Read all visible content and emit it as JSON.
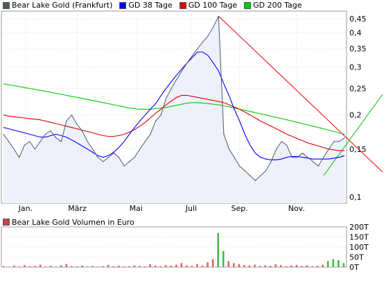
{
  "legend": {
    "items": [
      {
        "label": "Bear Lake Gold (Frankfurt)",
        "color": "#4a5a6a"
      },
      {
        "label": "GD 38 Tage",
        "color": "#0000ff"
      },
      {
        "label": "GD 100 Tage",
        "color": "#dd0000"
      },
      {
        "label": "GD 200 Tage",
        "color": "#00cc00"
      }
    ]
  },
  "volume_legend": {
    "label": "Bear Lake Gold Volumen in Euro",
    "color": "#cc4444"
  },
  "colors": {
    "price": "#4a5a6a",
    "area": "#eef0fa",
    "gd38": "#0000ff",
    "gd100": "#dd0000",
    "gd200": "#00cc00",
    "trend_red": "#ee0000",
    "trend_green": "#00bb00",
    "grid": "#cccccc"
  },
  "chart_data": [
    {
      "type": "line",
      "scale": "log",
      "x_ticks": [
        "Jan.",
        "März",
        "Mai",
        "Juli",
        "Sep.",
        "Nov."
      ],
      "y_ticks": [
        "0,45",
        "0,4",
        "0,35",
        "0,3",
        "0,25",
        "0,2",
        "0,15",
        "0,1"
      ],
      "ylim": [
        0.095,
        0.48
      ],
      "series": [
        {
          "name": "Bear Lake Gold (Frankfurt)",
          "values": [
            0.17,
            0.16,
            0.15,
            0.14,
            0.155,
            0.16,
            0.15,
            0.16,
            0.17,
            0.175,
            0.165,
            0.16,
            0.19,
            0.2,
            0.185,
            0.175,
            0.16,
            0.15,
            0.14,
            0.135,
            0.14,
            0.145,
            0.14,
            0.13,
            0.135,
            0.14,
            0.15,
            0.16,
            0.17,
            0.19,
            0.2,
            0.23,
            0.25,
            0.27,
            0.29,
            0.31,
            0.33,
            0.35,
            0.37,
            0.39,
            0.42,
            0.46,
            0.17,
            0.15,
            0.14,
            0.13,
            0.125,
            0.12,
            0.115,
            0.12,
            0.125,
            0.135,
            0.15,
            0.16,
            0.155,
            0.14,
            0.14,
            0.145,
            0.14,
            0.135,
            0.13,
            0.14,
            0.15,
            0.16,
            0.16,
            0.165
          ]
        },
        {
          "name": "GD 38 Tage",
          "values": [
            0.18,
            0.178,
            0.176,
            0.174,
            0.172,
            0.17,
            0.168,
            0.166,
            0.166,
            0.168,
            0.17,
            0.168,
            0.166,
            0.162,
            0.158,
            0.154,
            0.15,
            0.146,
            0.142,
            0.14,
            0.142,
            0.146,
            0.152,
            0.16,
            0.17,
            0.18,
            0.19,
            0.2,
            0.21,
            0.22,
            0.235,
            0.25,
            0.265,
            0.28,
            0.295,
            0.31,
            0.325,
            0.34,
            0.34,
            0.33,
            0.31,
            0.29,
            0.26,
            0.235,
            0.21,
            0.19,
            0.17,
            0.155,
            0.145,
            0.14,
            0.138,
            0.137,
            0.137,
            0.138,
            0.14,
            0.141,
            0.141,
            0.14,
            0.139,
            0.138,
            0.138,
            0.138,
            0.138,
            0.139,
            0.14,
            0.142
          ]
        },
        {
          "name": "GD 100 Tage",
          "values": [
            0.2,
            0.198,
            0.197,
            0.196,
            0.195,
            0.194,
            0.193,
            0.192,
            0.19,
            0.188,
            0.186,
            0.184,
            0.182,
            0.18,
            0.178,
            0.176,
            0.174,
            0.172,
            0.17,
            0.168,
            0.167,
            0.167,
            0.168,
            0.17,
            0.173,
            0.177,
            0.182,
            0.188,
            0.195,
            0.203,
            0.21,
            0.218,
            0.225,
            0.232,
            0.236,
            0.236,
            0.234,
            0.232,
            0.23,
            0.228,
            0.226,
            0.224,
            0.222,
            0.218,
            0.214,
            0.21,
            0.205,
            0.2,
            0.195,
            0.19,
            0.186,
            0.182,
            0.178,
            0.174,
            0.17,
            0.167,
            0.164,
            0.161,
            0.158,
            0.156,
            0.154,
            0.152,
            0.15,
            0.149,
            0.148,
            0.148
          ]
        },
        {
          "name": "GD 200 Tage",
          "values": [
            0.26,
            0.258,
            0.256,
            0.254,
            0.252,
            0.25,
            0.248,
            0.246,
            0.244,
            0.242,
            0.24,
            0.238,
            0.236,
            0.234,
            0.232,
            0.23,
            0.228,
            0.226,
            0.224,
            0.222,
            0.22,
            0.218,
            0.216,
            0.214,
            0.212,
            0.211,
            0.21,
            0.21,
            0.21,
            0.211,
            0.212,
            0.213,
            0.215,
            0.217,
            0.219,
            0.221,
            0.222,
            0.222,
            0.221,
            0.22,
            0.219,
            0.218,
            0.216,
            0.214,
            0.212,
            0.21,
            0.208,
            0.206,
            0.204,
            0.202,
            0.2,
            0.198,
            0.196,
            0.194,
            0.192,
            0.19,
            0.188,
            0.186,
            0.184,
            0.182,
            0.18,
            0.178,
            0.176,
            0.174,
            0.172,
            0.17
          ]
        }
      ]
    },
    {
      "type": "bar",
      "y_ticks": [
        "200T",
        "150T",
        "100T",
        "50T",
        "0T"
      ],
      "ylim": [
        0,
        200
      ],
      "series": [
        {
          "name": "Bear Lake Gold Volumen in Euro",
          "values": [
            5,
            2,
            8,
            3,
            10,
            4,
            6,
            12,
            3,
            7,
            2,
            9,
            15,
            5,
            4,
            8,
            3,
            6,
            2,
            5,
            11,
            4,
            7,
            3,
            5,
            9,
            6,
            4,
            14,
            8,
            5,
            10,
            7,
            12,
            20,
            9,
            6,
            15,
            8,
            25,
            40,
            170,
            80,
            30,
            20,
            15,
            10,
            8,
            12,
            6,
            9,
            7,
            14,
            10,
            5,
            8,
            11,
            6,
            9,
            5,
            7,
            12,
            30,
            40,
            35,
            20
          ]
        }
      ]
    }
  ]
}
